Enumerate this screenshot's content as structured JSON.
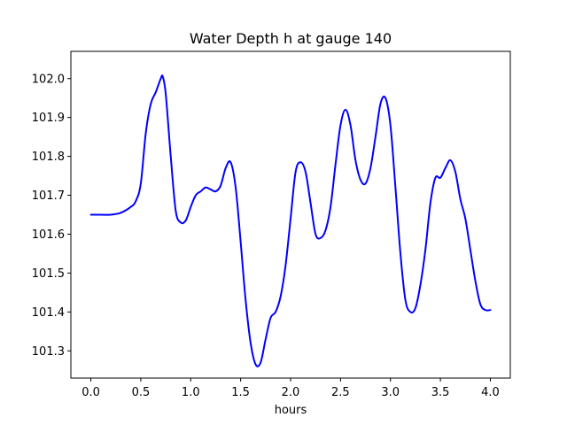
{
  "chart_data": {
    "type": "line",
    "title": "Water Depth h at gauge 140",
    "xlabel": "hours",
    "ylabel": "",
    "xlim": [
      -0.2,
      4.2
    ],
    "ylim": [
      101.23,
      102.07
    ],
    "xticks": [
      0.0,
      0.5,
      1.0,
      1.5,
      2.0,
      2.5,
      3.0,
      3.5,
      4.0
    ],
    "xtick_labels": [
      "0.0",
      "0.5",
      "1.0",
      "1.5",
      "2.0",
      "2.5",
      "3.0",
      "3.5",
      "4.0"
    ],
    "yticks": [
      101.3,
      101.4,
      101.5,
      101.6,
      101.7,
      101.8,
      101.9,
      102.0
    ],
    "ytick_labels": [
      "101.3",
      "101.4",
      "101.5",
      "101.6",
      "101.7",
      "101.8",
      "101.9",
      "102.0"
    ],
    "grid": false,
    "series": [
      {
        "color": "#0000ff",
        "x": [
          0.0,
          0.1,
          0.2,
          0.3,
          0.4,
          0.45,
          0.5,
          0.55,
          0.6,
          0.65,
          0.7,
          0.72,
          0.75,
          0.8,
          0.85,
          0.9,
          0.95,
          1.0,
          1.05,
          1.1,
          1.15,
          1.2,
          1.25,
          1.3,
          1.35,
          1.4,
          1.45,
          1.5,
          1.55,
          1.6,
          1.65,
          1.7,
          1.75,
          1.8,
          1.85,
          1.9,
          1.95,
          2.0,
          2.05,
          2.1,
          2.15,
          2.2,
          2.25,
          2.3,
          2.35,
          2.4,
          2.45,
          2.5,
          2.55,
          2.6,
          2.65,
          2.7,
          2.75,
          2.8,
          2.85,
          2.9,
          2.95,
          3.0,
          3.05,
          3.1,
          3.15,
          3.2,
          3.25,
          3.3,
          3.35,
          3.4,
          3.45,
          3.5,
          3.55,
          3.6,
          3.65,
          3.7,
          3.75,
          3.8,
          3.85,
          3.9,
          3.95,
          4.0
        ],
        "y": [
          101.65,
          101.65,
          101.65,
          101.655,
          101.67,
          101.685,
          101.73,
          101.86,
          101.935,
          101.965,
          102.0,
          102.005,
          101.96,
          101.8,
          101.66,
          101.63,
          101.635,
          101.67,
          101.7,
          101.71,
          101.72,
          101.715,
          101.71,
          101.725,
          101.77,
          101.785,
          101.72,
          101.58,
          101.43,
          101.32,
          101.265,
          101.27,
          101.33,
          101.385,
          101.4,
          101.44,
          101.52,
          101.64,
          101.76,
          101.785,
          101.76,
          101.68,
          101.6,
          101.59,
          101.61,
          101.67,
          101.78,
          101.88,
          101.92,
          101.88,
          101.79,
          101.74,
          101.73,
          101.77,
          101.85,
          101.935,
          101.95,
          101.88,
          101.72,
          101.55,
          101.43,
          101.4,
          101.41,
          101.47,
          101.56,
          101.68,
          101.745,
          101.745,
          101.77,
          101.79,
          101.76,
          101.69,
          101.64,
          101.56,
          101.48,
          101.42,
          101.405,
          101.405
        ]
      }
    ]
  }
}
